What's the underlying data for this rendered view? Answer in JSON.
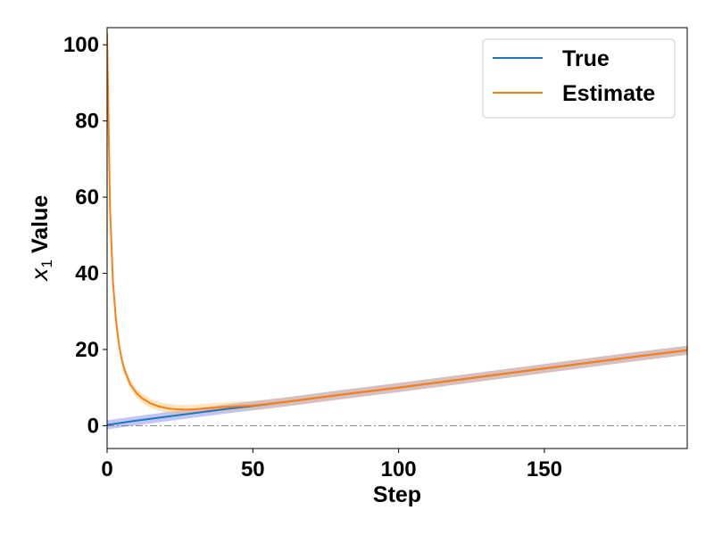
{
  "chart_data": {
    "type": "line",
    "xlabel": "Step",
    "ylabel_var": "x",
    "ylabel_sub": "1",
    "ylabel_rest": " Value",
    "xlim": [
      0,
      199
    ],
    "ylim": [
      -6,
      104.5
    ],
    "xticks": [
      0,
      50,
      100,
      150
    ],
    "yticks": [
      0,
      20,
      40,
      60,
      80,
      100
    ],
    "xtick_labels": [
      "0",
      "50",
      "100",
      "150"
    ],
    "ytick_labels": [
      "0",
      "20",
      "40",
      "60",
      "80",
      "100"
    ],
    "reference_line": {
      "y": 0,
      "style": "dash-dot",
      "color": "#808080"
    },
    "legend_position": "upper right",
    "series": [
      {
        "name": "True",
        "color": "#1f77b4",
        "band_color": "#4c5cf0",
        "x": [
          0,
          10,
          20,
          30,
          40,
          50,
          60,
          80,
          100,
          120,
          150,
          180,
          199
        ],
        "values": [
          0.2,
          1.3,
          2.3,
          3.3,
          4.3,
          5.2,
          6.1,
          8.1,
          10.0,
          12.0,
          15.0,
          18.0,
          19.8
        ],
        "band": 1.2
      },
      {
        "name": "Estimate",
        "color": "#ff7f0e",
        "band_color": "#ffb347",
        "x": [
          0,
          0.5,
          1,
          2,
          3,
          4,
          5,
          6,
          8,
          10,
          12,
          15,
          18,
          21,
          24,
          27,
          30,
          35,
          40,
          50,
          60,
          80,
          100,
          120,
          150,
          180,
          199
        ],
        "values": [
          103,
          80,
          57,
          38,
          28,
          21.5,
          17.5,
          14.5,
          10.8,
          8.6,
          7.2,
          5.8,
          5.0,
          4.5,
          4.3,
          4.2,
          4.3,
          4.6,
          4.9,
          5.3,
          6.1,
          8.1,
          10.0,
          12.0,
          15.0,
          18.0,
          19.8
        ],
        "band": 1.2
      }
    ]
  }
}
